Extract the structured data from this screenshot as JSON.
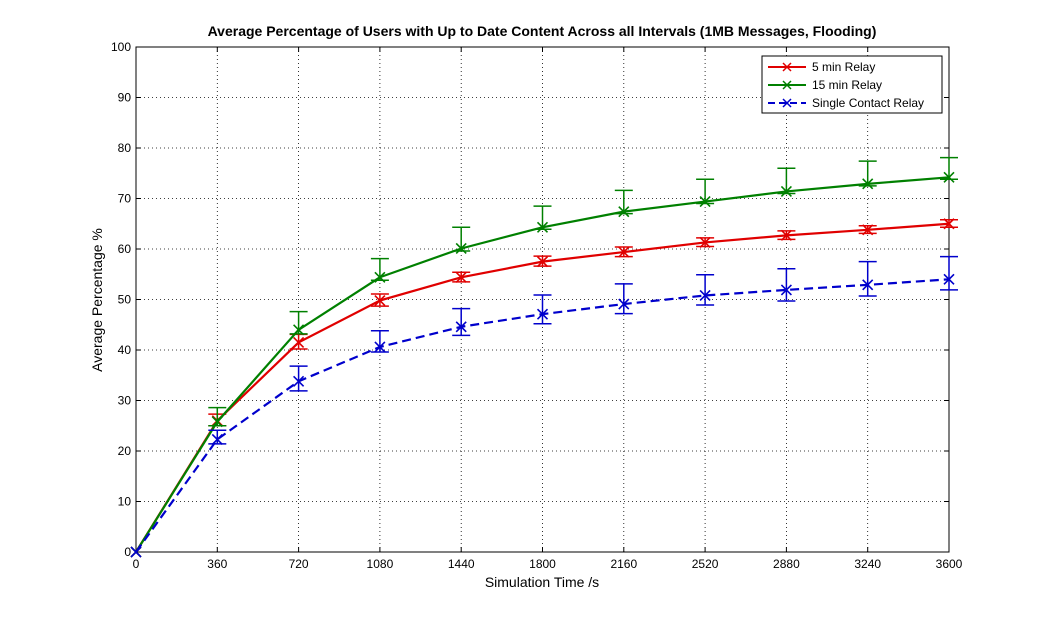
{
  "chart_data": {
    "type": "line",
    "title": "Average Percentage of Users with Up to Date Content Across all Intervals (1MB Messages, Flooding)",
    "xlabel": "Simulation Time /s",
    "ylabel": "Average Percentage %",
    "xlim": [
      0,
      3600
    ],
    "ylim": [
      0,
      100
    ],
    "xticks": [
      0,
      360,
      720,
      1080,
      1440,
      1800,
      2160,
      2520,
      2880,
      3240,
      3600
    ],
    "yticks": [
      0,
      10,
      20,
      30,
      40,
      50,
      60,
      70,
      80,
      90,
      100
    ],
    "grid": true,
    "legend_position": "top-right",
    "x": [
      0,
      360,
      720,
      1080,
      1440,
      1800,
      2160,
      2520,
      2880,
      3240,
      3600
    ],
    "series": [
      {
        "name": "5 min Relay",
        "color": "#e00000",
        "dash": "solid",
        "marker": "x",
        "values": [
          0,
          26.0,
          41.5,
          49.8,
          54.4,
          57.5,
          59.4,
          61.3,
          62.7,
          63.8,
          65.0
        ],
        "err_low": [
          0,
          25.0,
          40.2,
          48.7,
          53.5,
          56.6,
          58.5,
          60.5,
          61.9,
          63.1,
          64.3
        ],
        "err_high": [
          0,
          27.3,
          43.1,
          51.1,
          55.4,
          58.6,
          60.4,
          62.2,
          63.6,
          64.6,
          65.8
        ]
      },
      {
        "name": "15 min Relay",
        "color": "#008000",
        "dash": "solid",
        "marker": "x",
        "values": [
          0,
          25.8,
          44.0,
          54.4,
          60.1,
          64.3,
          67.4,
          69.4,
          71.4,
          72.9,
          74.2
        ],
        "err_low": [
          0,
          25.0,
          43.2,
          53.8,
          59.6,
          63.9,
          67.0,
          69.0,
          71.0,
          72.5,
          73.8
        ],
        "err_high": [
          0,
          28.6,
          47.6,
          58.1,
          64.3,
          68.5,
          71.6,
          73.8,
          76.0,
          77.4,
          78.1
        ]
      },
      {
        "name": "Single Contact Relay",
        "color": "#0000cc",
        "dash": "dashed",
        "marker": "x",
        "values": [
          0,
          22.3,
          33.8,
          40.6,
          44.6,
          47.1,
          49.1,
          50.8,
          51.9,
          52.9,
          54.0
        ],
        "err_low": [
          0,
          21.4,
          31.9,
          39.6,
          42.9,
          45.2,
          47.2,
          48.9,
          49.7,
          50.7,
          51.9
        ],
        "err_high": [
          0,
          24.1,
          36.8,
          43.8,
          48.2,
          50.9,
          53.1,
          54.9,
          56.1,
          57.5,
          58.5
        ]
      }
    ]
  }
}
